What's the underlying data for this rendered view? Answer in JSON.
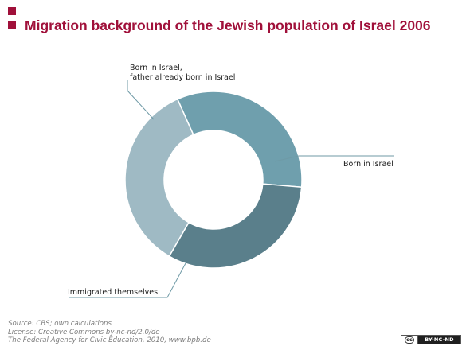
{
  "header": {
    "title": "Migration background of the Jewish population of Israel 2006"
  },
  "colors": {
    "accent": "#a0103a",
    "leader_line": "#6f9aa6",
    "footer_text": "#7d7d7d"
  },
  "chart_data": {
    "type": "pie",
    "style": "donut",
    "title": "Migration background of the Jewish population of Israel 2006",
    "slices": [
      {
        "name": "Born in Israel,\nfather already born in Israel",
        "label_lines": [
          "Born in Israel,",
          "father already born in Israel"
        ],
        "value": 35,
        "color": "#9fbac4"
      },
      {
        "name": "Born in Israel",
        "label_lines": [
          "Born in Israel"
        ],
        "value": 33,
        "color": "#6f9fad"
      },
      {
        "name": "Immigrated themselves",
        "label_lines": [
          "Immigrated themselves"
        ],
        "value": 32,
        "color": "#5a7f8b"
      }
    ],
    "unit": "%",
    "legend": "none",
    "grid": false
  },
  "footer": {
    "source": "Source: CBS; own calculations",
    "license": "License: Creative Commons by-nc-nd/2.0/de",
    "publisher": "The Federal Agency for Civic Education, 2010, www.bpb.de"
  },
  "badge": {
    "cc_mark": "cc",
    "terms": "BY-NC-ND"
  }
}
